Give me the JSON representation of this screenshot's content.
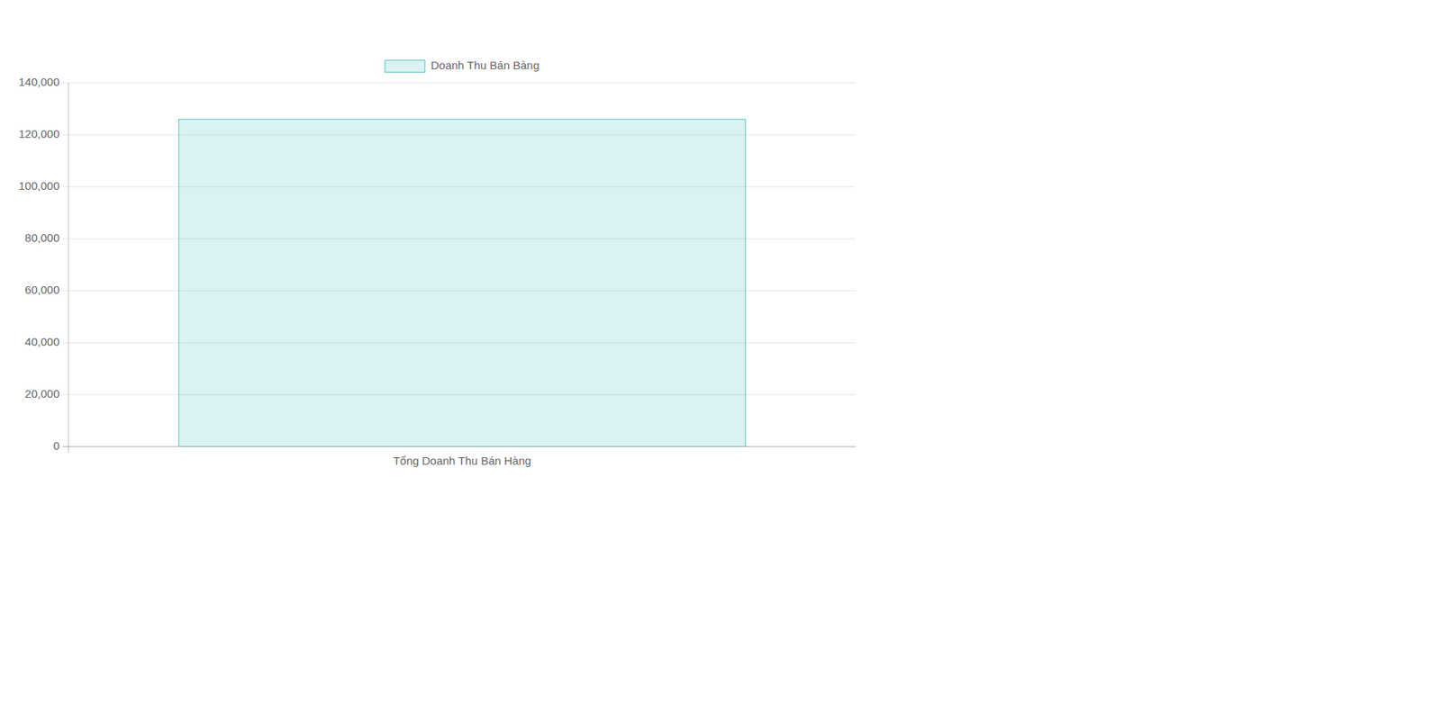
{
  "chart_data": {
    "type": "bar",
    "categories": [
      "Tổng Doanh Thu Bán Hàng"
    ],
    "series": [
      {
        "name": "Doanh Thu Bán Bàng",
        "color": "#4bc0c0",
        "values": [
          126000
        ]
      }
    ],
    "ylim": [
      0,
      140000
    ],
    "yticks": [
      0,
      {
        "value": 20000,
        "label": "20,000"
      },
      {
        "value": 40000,
        "label": "40,000"
      },
      {
        "value": 60000,
        "label": "60,000"
      },
      {
        "value": 80000,
        "label": "80,000"
      },
      {
        "value": 100000,
        "label": "100,000"
      },
      {
        "value": 120000,
        "label": "120,000"
      },
      {
        "value": 140000,
        "label": "140,000"
      }
    ],
    "grid": true,
    "legend": "top"
  }
}
